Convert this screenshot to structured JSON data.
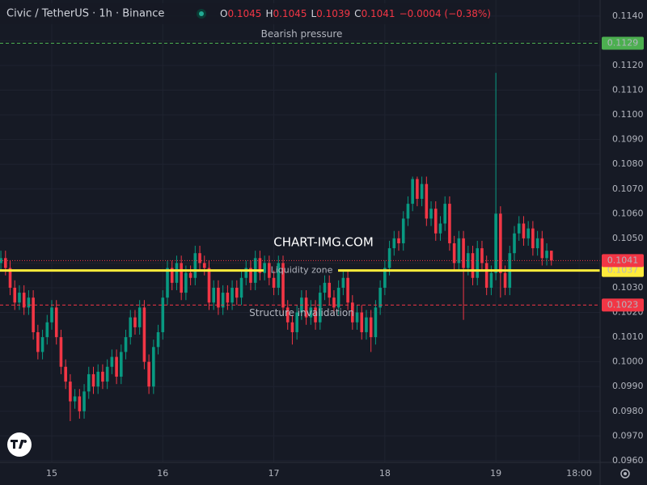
{
  "chart_data": {
    "type": "candlestick",
    "title": "Civic / TetherUS · 1h · Binance",
    "ohlc_header": [
      {
        "label": "O",
        "value": "0.1045"
      },
      {
        "label": "H",
        "value": "0.1045"
      },
      {
        "label": "L",
        "value": "0.1039"
      },
      {
        "label": "C",
        "value": "0.1041"
      }
    ],
    "change": "−0.0004 (−0.38%)",
    "watermark": "CHART-IMG.COM",
    "up_color": "#089981",
    "down_color": "#f23645",
    "grid": true,
    "x": [
      -11,
      -10,
      -9,
      -8,
      -7,
      -6,
      -5,
      -4,
      -3,
      -2,
      -1,
      0,
      1,
      2,
      3,
      4,
      5,
      6,
      7,
      8,
      9,
      10,
      11,
      12,
      13,
      14,
      15,
      16,
      17,
      18,
      19,
      20,
      21,
      22,
      23,
      24,
      25,
      26,
      27,
      28,
      29,
      30,
      31,
      32,
      33,
      34,
      35,
      36,
      37,
      38,
      39,
      40,
      41,
      42,
      43,
      44,
      45,
      46,
      47,
      48,
      49,
      50,
      51,
      52,
      53,
      54,
      55,
      56,
      57,
      58,
      59,
      60,
      61,
      62,
      63,
      64,
      65,
      66,
      67,
      68,
      69,
      70,
      71,
      72,
      73,
      74,
      75,
      76,
      77,
      78,
      79,
      80,
      81,
      82,
      83,
      84,
      85,
      86,
      87,
      88,
      89,
      90,
      91,
      92,
      93,
      94,
      95,
      96,
      97,
      98,
      99,
      100,
      101,
      102,
      103,
      104,
      105,
      106,
      107,
      108
    ],
    "open": [
      0.104,
      0.1042,
      0.1038,
      0.103,
      0.1024,
      0.1028,
      0.1022,
      0.1026,
      0.1012,
      0.1004,
      0.101,
      0.1016,
      0.1022,
      0.101,
      0.0998,
      0.0992,
      0.0984,
      0.0986,
      0.098,
      0.0988,
      0.0995,
      0.099,
      0.0996,
      0.0992,
      0.0998,
      0.1002,
      0.0994,
      0.1004,
      0.101,
      0.1018,
      0.1014,
      0.1022,
      0.1,
      0.099,
      0.1006,
      0.1012,
      0.1026,
      0.1038,
      0.1032,
      0.104,
      0.1028,
      0.1036,
      0.1034,
      0.1044,
      0.104,
      0.1038,
      0.1024,
      0.103,
      0.1022,
      0.1028,
      0.1024,
      0.103,
      0.1026,
      0.1034,
      0.1038,
      0.1032,
      0.1042,
      0.1036,
      0.104,
      0.1034,
      0.103,
      0.104,
      0.1022,
      0.1016,
      0.1012,
      0.102,
      0.1026,
      0.1018,
      0.1022,
      0.1016,
      0.1028,
      0.1032,
      0.1026,
      0.1022,
      0.103,
      0.1034,
      0.1024,
      0.1016,
      0.102,
      0.1012,
      0.1018,
      0.101,
      0.1022,
      0.103,
      0.1038,
      0.1046,
      0.105,
      0.1048,
      0.1058,
      0.1064,
      0.1074,
      0.1066,
      0.1072,
      0.1058,
      0.1062,
      0.1052,
      0.1056,
      0.1064,
      0.1048,
      0.104,
      0.105,
      0.1038,
      0.1044,
      0.1034,
      0.1046,
      0.104,
      0.103,
      0.1036,
      0.106,
      0.1036,
      0.103,
      0.1044,
      0.1052,
      0.1056,
      0.105,
      0.1054,
      0.1046,
      0.105,
      0.1042,
      0.1045
    ],
    "high": [
      0.1045,
      0.1045,
      0.1041,
      0.1033,
      0.1031,
      0.1031,
      0.1029,
      0.1029,
      0.1015,
      0.1013,
      0.1019,
      0.1025,
      0.1025,
      0.1013,
      0.1001,
      0.0995,
      0.0989,
      0.0989,
      0.0991,
      0.0998,
      0.0998,
      0.0999,
      0.0999,
      0.1001,
      0.1005,
      0.1005,
      0.1007,
      0.1013,
      0.1021,
      0.1021,
      0.1025,
      0.1025,
      0.1003,
      0.1009,
      0.1015,
      0.1029,
      0.1041,
      0.1041,
      0.1043,
      0.1043,
      0.1039,
      0.1039,
      0.1047,
      0.1047,
      0.1043,
      0.1041,
      0.1033,
      0.1033,
      0.1031,
      0.1031,
      0.1033,
      0.1033,
      0.1037,
      0.1041,
      0.1041,
      0.1045,
      0.1045,
      0.1043,
      0.1043,
      0.1037,
      0.1043,
      0.1043,
      0.1025,
      0.1019,
      0.1023,
      0.1029,
      0.1029,
      0.1025,
      0.1025,
      0.1031,
      0.1035,
      0.1035,
      0.1029,
      0.1033,
      0.1037,
      0.1037,
      0.1027,
      0.1023,
      0.1023,
      0.1021,
      0.1021,
      0.1025,
      0.1033,
      0.1041,
      0.1049,
      0.1053,
      0.1053,
      0.1061,
      0.1067,
      0.1075,
      0.1075,
      0.1075,
      0.1075,
      0.1065,
      0.1065,
      0.1059,
      0.1067,
      0.1067,
      0.1051,
      0.1053,
      0.1053,
      0.1047,
      0.1047,
      0.1049,
      0.1049,
      0.1043,
      0.1039,
      0.1117,
      0.1063,
      0.1039,
      0.1047,
      0.1055,
      0.1059,
      0.1059,
      0.1057,
      0.1057,
      0.1053,
      0.1053,
      0.1048,
      0.1045
    ],
    "low": [
      0.1037,
      0.1035,
      0.1027,
      0.1021,
      0.1021,
      0.1019,
      0.1019,
      0.1009,
      0.1001,
      0.1001,
      0.1007,
      0.1013,
      0.1007,
      0.0995,
      0.0989,
      0.0976,
      0.0981,
      0.0977,
      0.0977,
      0.0985,
      0.0987,
      0.0987,
      0.0989,
      0.0989,
      0.0995,
      0.0991,
      0.0991,
      0.1001,
      0.1007,
      0.1011,
      0.1011,
      0.0997,
      0.0987,
      0.0987,
      0.1003,
      0.1009,
      0.1023,
      0.1029,
      0.1029,
      0.1025,
      0.1025,
      0.1031,
      0.1031,
      0.1037,
      0.1035,
      0.1021,
      0.1021,
      0.1019,
      0.1019,
      0.1021,
      0.1021,
      0.1023,
      0.1023,
      0.1031,
      0.1029,
      0.1029,
      0.1033,
      0.1033,
      0.1031,
      0.1027,
      0.1027,
      0.1019,
      0.1013,
      0.1007,
      0.1009,
      0.1017,
      0.1015,
      0.1015,
      0.1013,
      0.1013,
      0.1025,
      0.1023,
      0.1019,
      0.1019,
      0.1027,
      0.1021,
      0.1013,
      0.1013,
      0.1009,
      0.1009,
      0.1004,
      0.1007,
      0.1019,
      0.1027,
      0.1035,
      0.1043,
      0.1045,
      0.1045,
      0.1055,
      0.1061,
      0.1063,
      0.1063,
      0.1055,
      0.1055,
      0.1049,
      0.1049,
      0.1053,
      0.1045,
      0.1037,
      0.1037,
      0.1017,
      0.1035,
      0.1031,
      0.1031,
      0.1037,
      0.1027,
      0.1027,
      0.1033,
      0.1026,
      0.1027,
      0.1027,
      0.1041,
      0.1049,
      0.1047,
      0.1047,
      0.1043,
      0.1043,
      0.1039,
      0.1039,
      0.1039
    ],
    "close": [
      0.1042,
      0.1038,
      0.103,
      0.1024,
      0.1028,
      0.1022,
      0.1026,
      0.1012,
      0.1004,
      0.101,
      0.1016,
      0.1022,
      0.101,
      0.0998,
      0.0992,
      0.0984,
      0.0986,
      0.098,
      0.0988,
      0.0995,
      0.099,
      0.0996,
      0.0992,
      0.0998,
      0.1002,
      0.0994,
      0.1004,
      0.101,
      0.1018,
      0.1014,
      0.1022,
      0.1,
      0.099,
      0.1006,
      0.1012,
      0.1026,
      0.1038,
      0.1032,
      0.104,
      0.1028,
      0.1036,
      0.1034,
      0.1044,
      0.104,
      0.1038,
      0.1024,
      0.103,
      0.1022,
      0.1028,
      0.1024,
      0.103,
      0.1026,
      0.1034,
      0.1038,
      0.1032,
      0.1042,
      0.1036,
      0.104,
      0.1034,
      0.103,
      0.104,
      0.1022,
      0.1016,
      0.1012,
      0.102,
      0.1026,
      0.1018,
      0.1022,
      0.1016,
      0.1028,
      0.1032,
      0.1026,
      0.1022,
      0.103,
      0.1034,
      0.1024,
      0.1016,
      0.102,
      0.1012,
      0.1018,
      0.101,
      0.1022,
      0.103,
      0.1038,
      0.1046,
      0.105,
      0.1048,
      0.1058,
      0.1064,
      0.1074,
      0.1066,
      0.1072,
      0.1058,
      0.1062,
      0.1052,
      0.1056,
      0.1064,
      0.1048,
      0.104,
      0.105,
      0.1038,
      0.1044,
      0.1034,
      0.1046,
      0.104,
      0.103,
      0.1036,
      0.106,
      0.1036,
      0.103,
      0.1044,
      0.1052,
      0.1056,
      0.105,
      0.1054,
      0.1046,
      0.105,
      0.1042,
      0.1045,
      0.1041
    ],
    "xlim": [
      -11.19,
      118.53
    ],
    "xticks": [
      {
        "value": 0,
        "label": "15"
      },
      {
        "value": 24,
        "label": "16"
      },
      {
        "value": 48,
        "label": "17"
      },
      {
        "value": 72,
        "label": "18"
      },
      {
        "value": 96,
        "label": "19"
      },
      {
        "value": 114,
        "label": "18:00"
      }
    ],
    "ylim": [
      0.09593,
      0.11465
    ],
    "yticks": [
      {
        "value": 0.096,
        "label": "0.0960"
      },
      {
        "value": 0.097,
        "label": "0.0970"
      },
      {
        "value": 0.098,
        "label": "0.0980"
      },
      {
        "value": 0.099,
        "label": "0.0990"
      },
      {
        "value": 0.1,
        "label": "0.1000"
      },
      {
        "value": 0.101,
        "label": "0.1010"
      },
      {
        "value": 0.102,
        "label": "0.1020"
      },
      {
        "value": 0.103,
        "label": "0.1030"
      },
      {
        "value": 0.104,
        "label": "0.1040"
      },
      {
        "value": 0.105,
        "label": "0.1050"
      },
      {
        "value": 0.106,
        "label": "0.1060"
      },
      {
        "value": 0.107,
        "label": "0.1070"
      },
      {
        "value": 0.108,
        "label": "0.1080"
      },
      {
        "value": 0.109,
        "label": "0.1090"
      },
      {
        "value": 0.11,
        "label": "0.1100"
      },
      {
        "value": 0.111,
        "label": "0.1110"
      },
      {
        "value": 0.112,
        "label": "0.1120"
      },
      {
        "value": 0.113,
        "label": "0.1130"
      },
      {
        "value": 0.114,
        "label": "0.1140"
      }
    ],
    "levels": [
      {
        "label": "Bearish pressure",
        "value": 0.1129,
        "color": "#4caf50",
        "style": "dashed"
      },
      {
        "label": "Liquidity zone",
        "value": 0.1037,
        "color": "#ffeb3b",
        "style": "solid"
      },
      {
        "label": "Structure invalidation",
        "value": 0.1023,
        "color": "#f23645",
        "style": "dashed"
      }
    ],
    "last_price": 0.1041,
    "last_color": "#f23645"
  }
}
